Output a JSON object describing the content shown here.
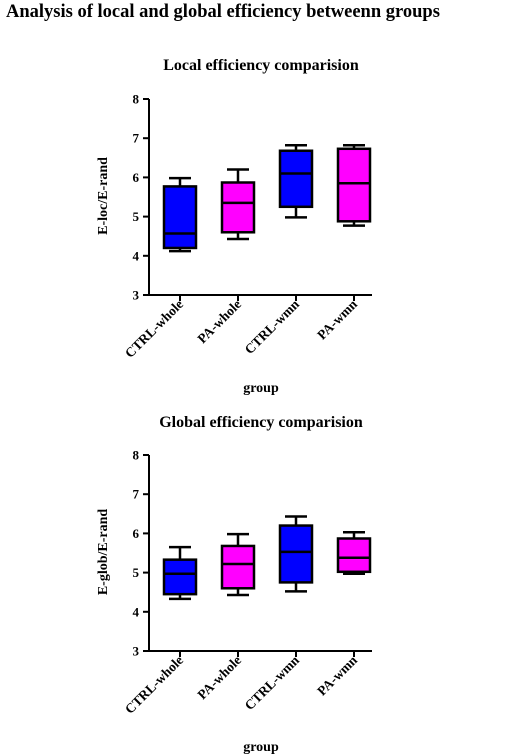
{
  "figure_title": "Analysis of local and global efficiency betweenn groups",
  "chart_data": [
    {
      "type": "box",
      "title": "Local efficiency comparision",
      "xlabel": "group",
      "ylabel": "E-loc/E-rand",
      "ylim": [
        3,
        8
      ],
      "yticks": [
        "3",
        "4",
        "5",
        "6",
        "7",
        "8"
      ],
      "categories": [
        "CTRL-whole",
        "PA-whole",
        "CTRL-wmn",
        "PA-wmn"
      ],
      "colors": [
        "#0000ff",
        "#ff00ff",
        "#0000ff",
        "#ff00ff"
      ],
      "boxes": [
        {
          "min": 4.12,
          "q1": 4.2,
          "median": 4.57,
          "q3": 5.77,
          "max": 5.98
        },
        {
          "min": 4.43,
          "q1": 4.6,
          "median": 5.35,
          "q3": 5.87,
          "max": 6.2
        },
        {
          "min": 4.98,
          "q1": 5.25,
          "median": 6.1,
          "q3": 6.68,
          "max": 6.82
        },
        {
          "min": 4.77,
          "q1": 4.88,
          "median": 5.85,
          "q3": 6.73,
          "max": 6.82
        }
      ]
    },
    {
      "type": "box",
      "title": "Global efficiency comparision",
      "xlabel": "group",
      "ylabel": "E-glob/E-rand",
      "ylim": [
        3,
        8
      ],
      "yticks": [
        "3",
        "4",
        "5",
        "6",
        "7",
        "8"
      ],
      "categories": [
        "CTRL-whole",
        "PA-whole",
        "CTRL-wmn",
        "PA-wmn"
      ],
      "colors": [
        "#0000ff",
        "#ff00ff",
        "#0000ff",
        "#ff00ff"
      ],
      "boxes": [
        {
          "min": 4.33,
          "q1": 4.45,
          "median": 4.97,
          "q3": 5.33,
          "max": 5.65
        },
        {
          "min": 4.43,
          "q1": 4.6,
          "median": 5.22,
          "q3": 5.68,
          "max": 5.98
        },
        {
          "min": 4.52,
          "q1": 4.75,
          "median": 5.53,
          "q3": 6.2,
          "max": 6.43
        },
        {
          "min": 4.97,
          "q1": 5.02,
          "median": 5.38,
          "q3": 5.87,
          "max": 6.03
        }
      ]
    }
  ]
}
